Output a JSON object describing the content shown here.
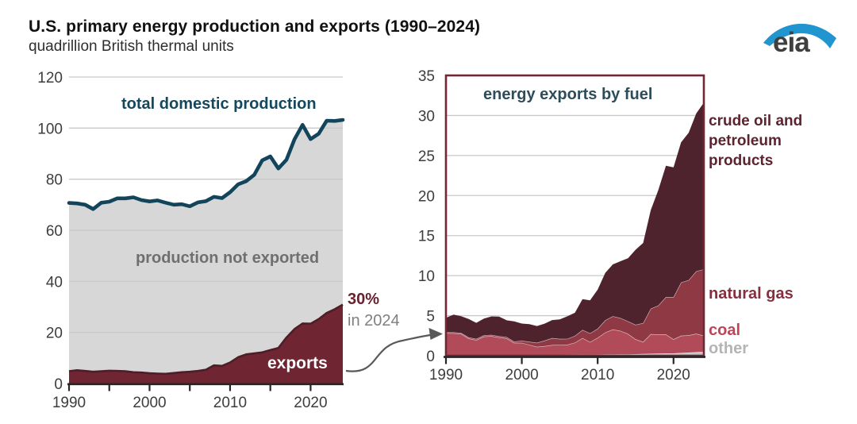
{
  "header": {
    "title": "U.S. primary energy production and exports (1990–2024)",
    "subtitle": "quadrillion British thermal units"
  },
  "logo": {
    "text": "eia",
    "swoosh_color": "#2095d0",
    "text_color": "#3f3f3f"
  },
  "colors": {
    "production_line": "#12455c",
    "production_fill": "#d7d7d7",
    "exports_fill": "#6f2532",
    "exports_line": "#4e1e28",
    "crude": "#4f232e",
    "natural_gas": "#8e3944",
    "coal": "#b14b59",
    "other": "#c6c5c5",
    "band_separator": "rgba(255,255,255,0.65)",
    "grid": "#c9c9c9",
    "axis": "#262626",
    "tick_text": "#3d3d3d",
    "arrow": "#595959",
    "right_border": "#722735",
    "left_label_teal": "#14485c",
    "gray_label": "#6f6f6f",
    "callout_maroon": "#67222f"
  },
  "chart_data": [
    {
      "name": "production-and-exports",
      "type": "area",
      "title": "",
      "years": [
        1990,
        1991,
        1992,
        1993,
        1994,
        1995,
        1996,
        1997,
        1998,
        1999,
        2000,
        2001,
        2002,
        2003,
        2004,
        2005,
        2006,
        2007,
        2008,
        2009,
        2010,
        2011,
        2012,
        2013,
        2014,
        2015,
        2016,
        2017,
        2018,
        2019,
        2020,
        2021,
        2022,
        2023,
        2024
      ],
      "series": [
        {
          "name": "total domestic production",
          "values": [
            70.7,
            70.5,
            70.0,
            68.3,
            70.8,
            71.2,
            72.5,
            72.5,
            72.9,
            71.8,
            71.3,
            71.7,
            70.8,
            70.0,
            70.2,
            69.4,
            70.9,
            71.4,
            73.1,
            72.6,
            74.9,
            78.0,
            79.2,
            81.7,
            87.4,
            88.9,
            84.2,
            87.6,
            95.6,
            101.3,
            95.7,
            97.8,
            102.9,
            102.8,
            103.2
          ]
        },
        {
          "name": "exports",
          "values": [
            4.8,
            5.2,
            4.9,
            4.6,
            4.8,
            5.0,
            4.9,
            4.8,
            4.4,
            4.3,
            4.0,
            3.9,
            3.8,
            4.1,
            4.4,
            4.6,
            4.9,
            5.4,
            7.1,
            6.9,
            8.2,
            10.3,
            11.4,
            11.8,
            12.2,
            13.1,
            13.9,
            18.0,
            21.3,
            23.5,
            23.4,
            25.2,
            27.6,
            29.1,
            30.9
          ]
        }
      ],
      "ylim": [
        0,
        120
      ],
      "yticks": [
        0,
        20,
        40,
        60,
        80,
        100,
        120
      ],
      "xticks": [
        1990,
        2000,
        2010,
        2020
      ],
      "xticks_minor": [
        1990,
        1995,
        2000,
        2005,
        2010,
        2015,
        2020
      ],
      "grid": true,
      "annotations": {
        "production": "total domestic production",
        "not_exported": "production not exported",
        "exports": "exports",
        "callout_value": "30%",
        "callout_year": "in 2024"
      }
    },
    {
      "name": "energy-exports-by-fuel",
      "type": "area-stacked",
      "title": "energy exports by fuel",
      "years": [
        1990,
        1991,
        1992,
        1993,
        1994,
        1995,
        1996,
        1997,
        1998,
        1999,
        2000,
        2001,
        2002,
        2003,
        2004,
        2005,
        2006,
        2007,
        2008,
        2009,
        2010,
        2011,
        2012,
        2013,
        2014,
        2015,
        2016,
        2017,
        2018,
        2019,
        2020,
        2021,
        2022,
        2023,
        2024
      ],
      "series": [
        {
          "name": "other",
          "color_key": "other",
          "values": [
            0.06,
            0.06,
            0.06,
            0.06,
            0.07,
            0.08,
            0.08,
            0.08,
            0.08,
            0.08,
            0.09,
            0.08,
            0.08,
            0.08,
            0.09,
            0.1,
            0.11,
            0.12,
            0.14,
            0.12,
            0.14,
            0.16,
            0.16,
            0.17,
            0.18,
            0.2,
            0.22,
            0.25,
            0.28,
            0.3,
            0.3,
            0.35,
            0.4,
            0.45,
            0.5
          ]
        },
        {
          "name": "coal",
          "color_key": "coal",
          "values": [
            2.77,
            2.75,
            2.68,
            2.09,
            1.88,
            2.32,
            2.37,
            2.2,
            2.09,
            1.53,
            1.53,
            1.29,
            1.03,
            1.12,
            1.25,
            1.27,
            1.27,
            1.52,
            2.07,
            1.6,
            2.1,
            2.75,
            3.12,
            2.94,
            2.56,
            1.85,
            1.52,
            2.45,
            2.37,
            2.37,
            1.75,
            2.15,
            2.15,
            2.3,
            2.0
          ]
        },
        {
          "name": "natural gas",
          "color_key": "natural_gas",
          "values": [
            0.09,
            0.11,
            0.12,
            0.14,
            0.16,
            0.16,
            0.16,
            0.16,
            0.16,
            0.16,
            0.25,
            0.38,
            0.52,
            0.69,
            0.86,
            0.73,
            0.73,
            0.84,
            1.01,
            1.09,
            1.14,
            1.51,
            1.66,
            1.6,
            1.56,
            1.82,
            2.34,
            3.18,
            3.63,
            4.66,
            5.28,
            6.65,
            6.9,
            7.8,
            8.3
          ]
        },
        {
          "name": "crude oil and petroleum products",
          "color_key": "crude",
          "values": [
            1.81,
            2.21,
            2.07,
            2.29,
            1.99,
            2.08,
            2.3,
            2.45,
            2.09,
            2.51,
            2.15,
            2.2,
            2.08,
            2.12,
            2.25,
            2.44,
            2.81,
            2.88,
            3.85,
            4.1,
            4.87,
            5.92,
            6.46,
            7.09,
            7.87,
            9.37,
            10.0,
            12.3,
            14.4,
            16.4,
            16.2,
            17.5,
            18.4,
            19.7,
            20.8
          ]
        }
      ],
      "ylim": [
        0,
        35
      ],
      "yticks": [
        0,
        5,
        10,
        15,
        20,
        25,
        30,
        35
      ],
      "xticks": [
        1990,
        2000,
        2010,
        2020
      ],
      "grid": true,
      "legend": {
        "crude": "crude oil and petroleum products",
        "natural_gas": "natural gas",
        "coal": "coal",
        "other": "other"
      }
    }
  ]
}
